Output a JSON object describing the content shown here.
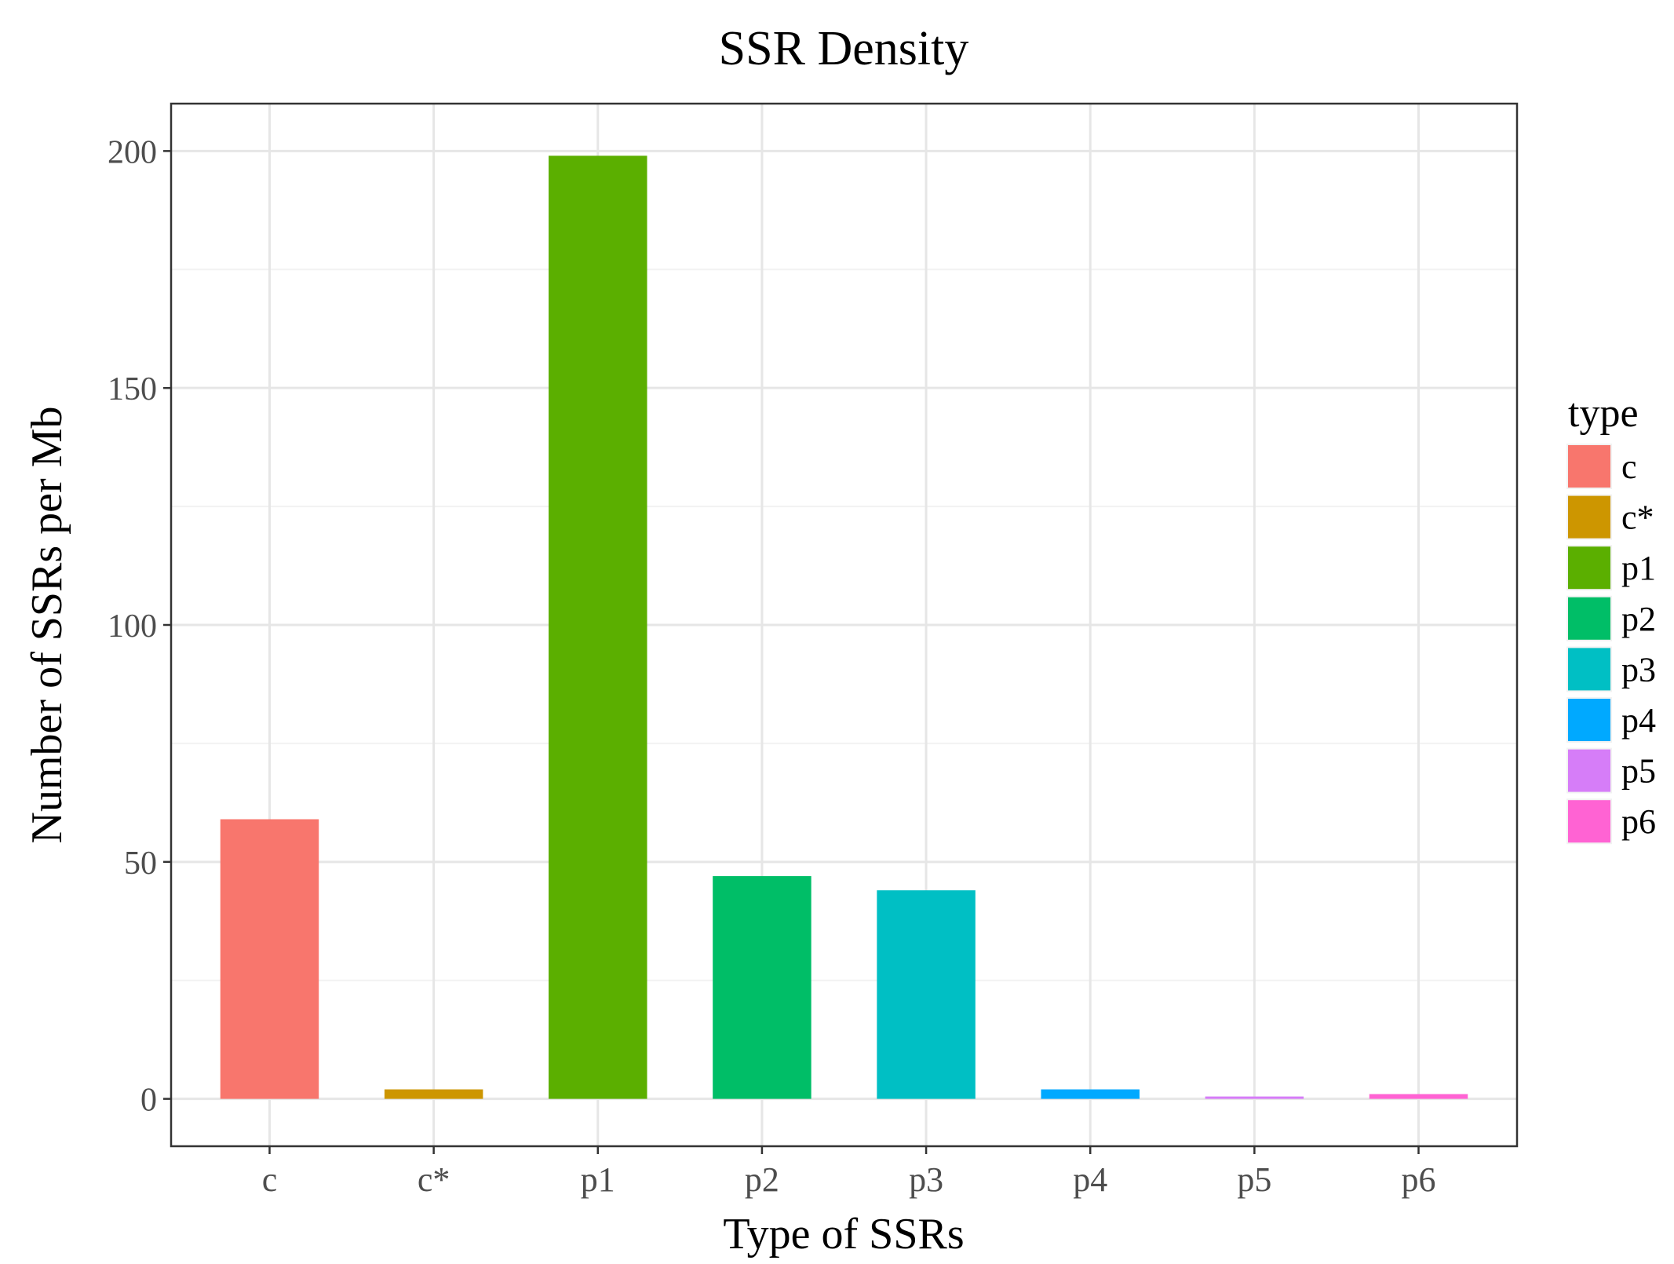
{
  "chart_data": {
    "type": "bar",
    "title": "SSR Density",
    "xlabel": "Type of SSRs",
    "ylabel": "Number of SSRs per Mb",
    "categories": [
      "c",
      "c*",
      "p1",
      "p2",
      "p3",
      "p4",
      "p5",
      "p6"
    ],
    "values": [
      59,
      2,
      199,
      47,
      44,
      2,
      0.5,
      1
    ],
    "colors": [
      "#F8766D",
      "#CD9600",
      "#5BAF00",
      "#00BE67",
      "#00BFC4",
      "#00A9FF",
      "#D67DF8",
      "#FF63D3"
    ],
    "ylim": [
      -10,
      210
    ],
    "yticks": [
      0,
      50,
      100,
      150,
      200
    ],
    "grid": true,
    "legend": {
      "title": "type",
      "position": "right",
      "entries": [
        "c",
        "c*",
        "p1",
        "p2",
        "p3",
        "p4",
        "p5",
        "p6"
      ]
    }
  }
}
